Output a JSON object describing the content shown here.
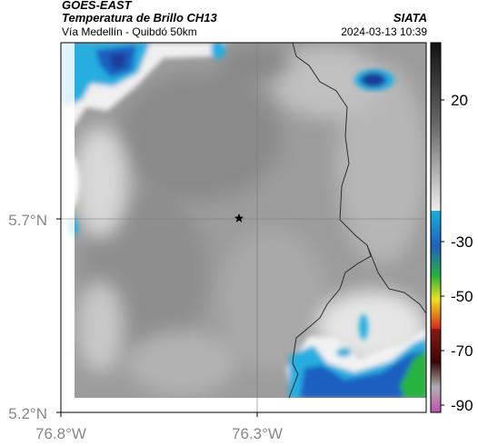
{
  "header": {
    "satellite": "GOES-EAST",
    "product": "Temperatura de Brillo CH13",
    "region": "Vía Medellín - Quibdó 50km",
    "agency": "SIATA",
    "datetime": "2024-03-13 10:39"
  },
  "map": {
    "lat_labels": [
      "5.7°N",
      "5.2°N"
    ],
    "lon_labels": [
      "76.8°W",
      "76.3°W"
    ],
    "marker": "star-marker"
  },
  "colorbar": {
    "labels": [
      "20",
      "-30",
      "-50",
      "-70",
      "-90"
    ],
    "colors": {
      "dark": "#111111",
      "gray": "#9a9a9a",
      "white": "#ffffff",
      "cyan": "#1ab0d8",
      "blue": "#1f5fc0",
      "green": "#27b23c",
      "yellow": "#f0e020",
      "red": "#d42a1c",
      "maroon": "#5a0b0b",
      "magenta": "#c050b0"
    }
  }
}
